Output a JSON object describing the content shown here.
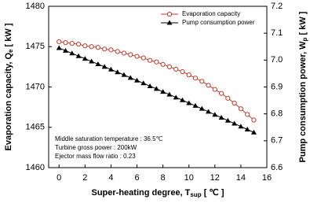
{
  "chart_data": {
    "type": "line",
    "x_label": {
      "text": "Super-heating degree, T",
      "sub": "sup",
      "unit": " [ ℃ ]"
    },
    "y_label": {
      "text": "Evaporation capacity, Q",
      "sub": "e",
      "unit": " [ kW ]"
    },
    "y2_label": {
      "text": "Pump consumption power, W",
      "sub": "p",
      "unit": " [ kW ]"
    },
    "x": [
      0,
      0.5,
      1,
      1.5,
      2,
      2.5,
      3,
      3.5,
      4,
      4.5,
      5,
      5.5,
      6,
      6.5,
      7,
      7.5,
      8,
      8.5,
      9,
      9.5,
      10,
      10.5,
      11,
      11.5,
      12,
      12.5,
      13,
      13.5,
      14,
      14.5,
      15
    ],
    "series": [
      {
        "name": "Evaporation capacity",
        "color": "#c0392b",
        "marker": "circle",
        "values": [
          1475.6,
          1475.5,
          1475.4,
          1475.3,
          1475.1,
          1475.0,
          1474.9,
          1474.7,
          1474.6,
          1474.4,
          1474.2,
          1474.0,
          1473.8,
          1473.6,
          1473.3,
          1473.1,
          1472.8,
          1472.5,
          1472.2,
          1471.9,
          1471.5,
          1471.1,
          1470.7,
          1470.2,
          1469.7,
          1469.2,
          1468.6,
          1468.0,
          1467.3,
          1466.6,
          1465.9
        ]
      },
      {
        "name": "Pump consumption power",
        "color": "#000000",
        "marker": "triangle",
        "axis": "y2",
        "values": [
          7.045,
          7.035,
          7.025,
          7.015,
          7.005,
          6.995,
          6.985,
          6.975,
          6.965,
          6.955,
          6.945,
          6.934,
          6.924,
          6.914,
          6.903,
          6.893,
          6.882,
          6.872,
          6.861,
          6.851,
          6.84,
          6.83,
          6.819,
          6.808,
          6.797,
          6.786,
          6.775,
          6.764,
          6.753,
          6.742,
          6.731
        ]
      }
    ],
    "xlim": [
      -0.8,
      16
    ],
    "xticks": [
      0,
      2,
      4,
      6,
      8,
      10,
      12,
      14,
      16
    ],
    "ylim": [
      1460,
      1480
    ],
    "yticks": [
      1460,
      1465,
      1470,
      1475,
      1480
    ],
    "y2lim": [
      6.6,
      7.2
    ],
    "y2ticks": [
      6.6,
      6.7,
      6.8,
      6.9,
      {
        "value": 7,
        "label": "7.0"
      },
      7.1,
      7.2
    ],
    "annotations": [
      "Middle saturation temperature : 36.5℃",
      "Turbine gross power : 200kW",
      "Ejector mass flow ratio : 0.23"
    ],
    "legend": "top-right"
  }
}
